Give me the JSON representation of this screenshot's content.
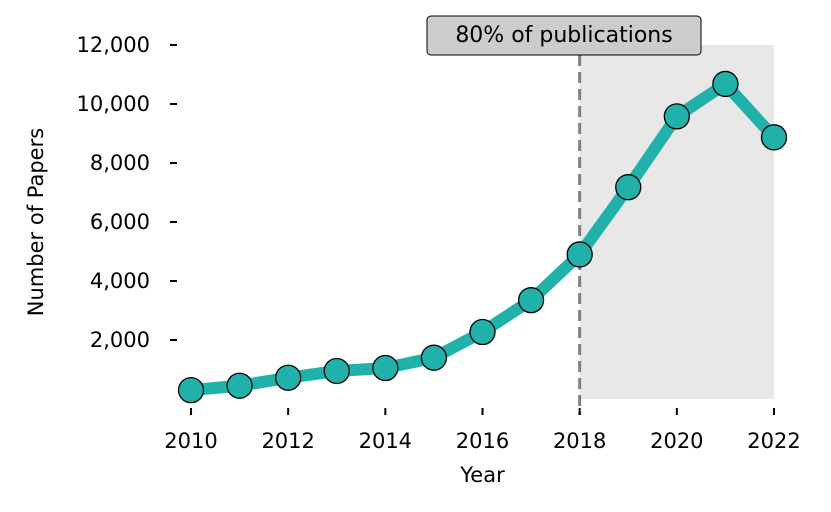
{
  "chart_data": {
    "type": "line",
    "title": "",
    "xlabel": "Year",
    "ylabel": "Number of Papers",
    "x": [
      2010,
      2011,
      2012,
      2013,
      2014,
      2015,
      2016,
      2017,
      2018,
      2019,
      2020,
      2021,
      2022
    ],
    "series": [
      {
        "values": [
          300,
          450,
          720,
          950,
          1050,
          1400,
          2270,
          3350,
          4900,
          7180,
          9580,
          10680,
          8870
        ],
        "color": "#20b2aa"
      }
    ],
    "xlim": [
      2010,
      2022
    ],
    "ylim": [
      0,
      12000
    ],
    "x_ticks": [
      "2010",
      "2012",
      "2014",
      "2016",
      "2018",
      "2020",
      "2022"
    ],
    "x_tick_values": [
      2010,
      2012,
      2014,
      2016,
      2018,
      2020,
      2022
    ],
    "y_ticks": [
      "2,000",
      "4,000",
      "6,000",
      "8,000",
      "10,000",
      "12,000"
    ],
    "y_tick_values": [
      2000,
      4000,
      6000,
      8000,
      10000,
      12000
    ],
    "grid": false,
    "annotation": {
      "text": "80% of publications",
      "x": 2018,
      "line_color": "#808080",
      "box_color": "#cccccc",
      "shade_from": 2018,
      "shade_to": 2022,
      "shade_color": "#e8e8e8"
    },
    "marker_color": "#20b2aa",
    "marker_edge_color": "#000000"
  }
}
